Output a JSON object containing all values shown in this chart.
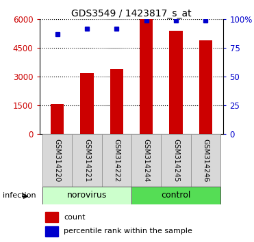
{
  "title": "GDS3549 / 1423817_s_at",
  "categories": [
    "GSM314220",
    "GSM314221",
    "GSM314222",
    "GSM314244",
    "GSM314245",
    "GSM314246"
  ],
  "counts": [
    1600,
    3200,
    3400,
    6000,
    5400,
    4900
  ],
  "percentiles": [
    87,
    92,
    92,
    99,
    99,
    99
  ],
  "bar_color": "#cc0000",
  "dot_color": "#0000cc",
  "ylim_left": [
    0,
    6000
  ],
  "ylim_right": [
    0,
    100
  ],
  "yticks_left": [
    0,
    1500,
    3000,
    4500,
    6000
  ],
  "yticks_right": [
    0,
    25,
    50,
    75,
    100
  ],
  "ytick_labels_right": [
    "0",
    "25",
    "50",
    "75",
    "100%"
  ],
  "groups": [
    {
      "label": "norovirus",
      "indices": [
        0,
        1,
        2
      ],
      "color": "#ccffcc"
    },
    {
      "label": "control",
      "indices": [
        3,
        4,
        5
      ],
      "color": "#55dd55"
    }
  ],
  "factor_label": "infection",
  "legend_count_label": "count",
  "legend_percentile_label": "percentile rank within the sample",
  "plot_bg": "#ffffff",
  "grid_color": "#000000",
  "title_fontsize": 10,
  "axis_fontsize": 8.5,
  "tick_label_fontsize": 7.5,
  "bar_width": 0.45
}
